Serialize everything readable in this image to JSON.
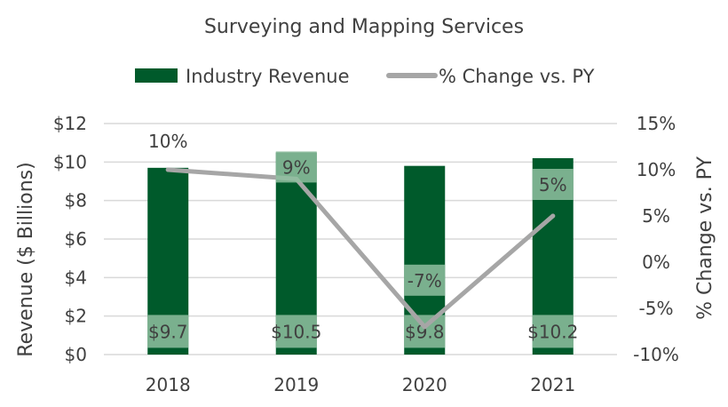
{
  "chart_data": {
    "type": "bar",
    "title": "Surveying and Mapping Services",
    "categories": [
      "2018",
      "2019",
      "2020",
      "2021"
    ],
    "series": [
      {
        "name": "Industry Revenue",
        "type": "bar",
        "axis": "left",
        "values": [
          9.7,
          10.5,
          9.8,
          10.2
        ],
        "labels": [
          "$9.7",
          "$10.5",
          "$9.8",
          "$10.2"
        ],
        "color": "#005a2b"
      },
      {
        "name": "% Change vs. PY",
        "type": "line",
        "axis": "right",
        "values": [
          10,
          9,
          -7,
          5
        ],
        "labels": [
          "10%",
          "9%",
          "-7%",
          "5%"
        ],
        "color": "#a6a6a6"
      }
    ],
    "ylabel": "Revenue ($ Billions)",
    "y2label": "% Change vs. PY",
    "ylim": [
      0,
      12
    ],
    "y2lim": [
      -10,
      15
    ],
    "yticks": [
      "$0",
      "$2",
      "$4",
      "$6",
      "$8",
      "$10",
      "$12"
    ],
    "y2ticks": [
      "-10%",
      "-5%",
      "0%",
      "5%",
      "10%",
      "15%"
    ],
    "grid": true,
    "legend": "top"
  }
}
